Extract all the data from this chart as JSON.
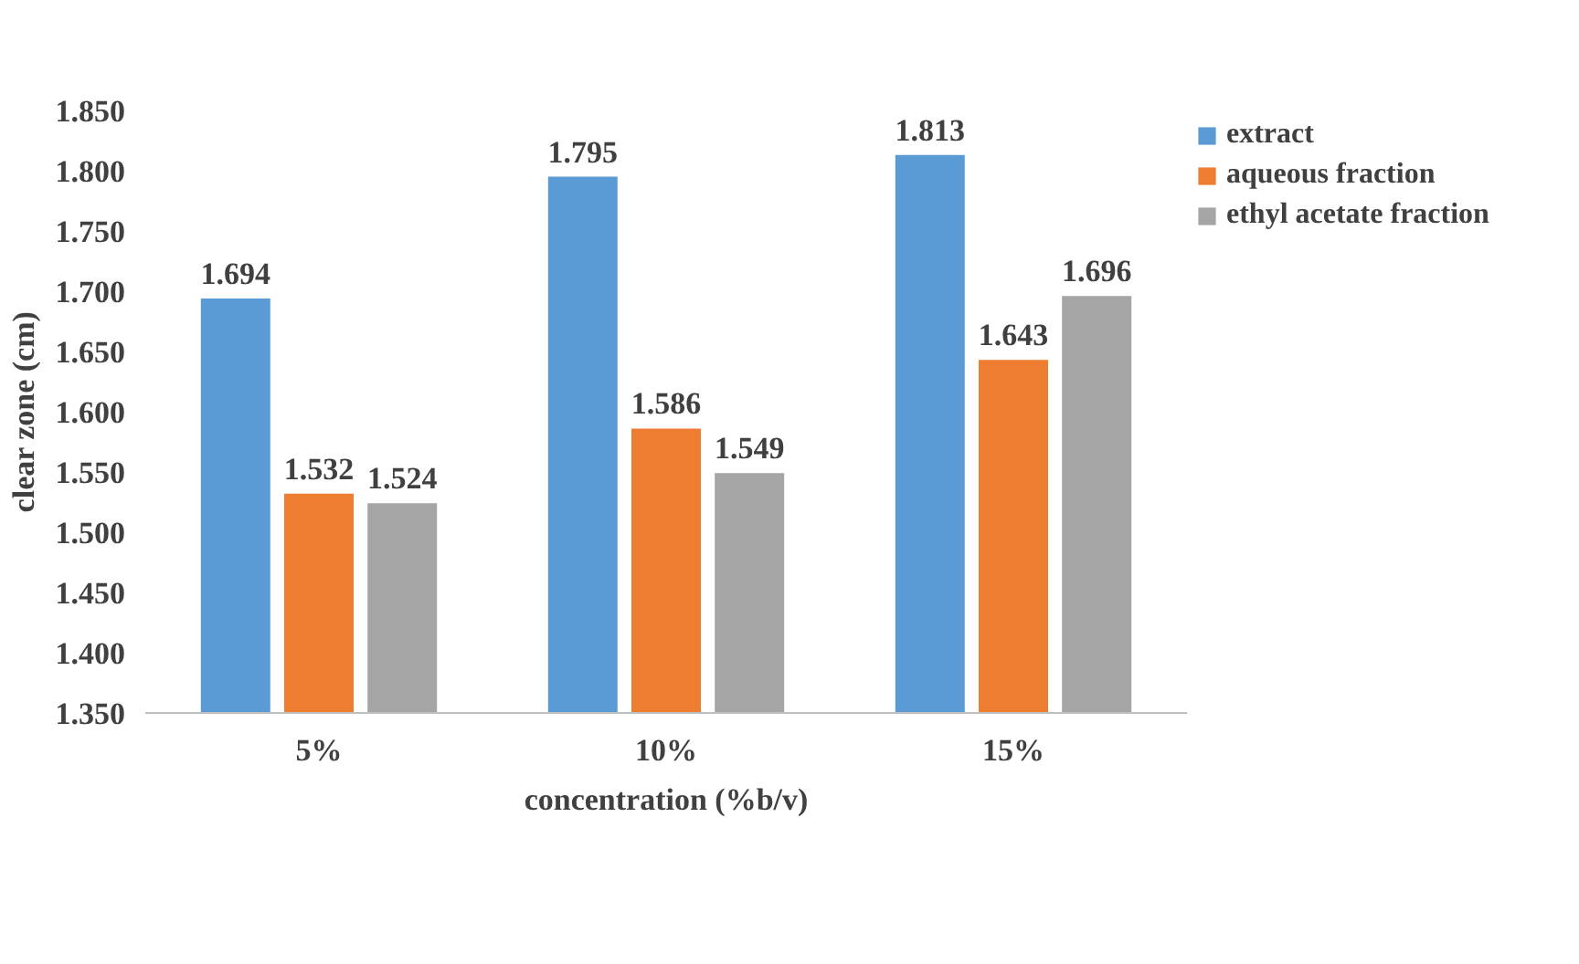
{
  "chart_data": {
    "type": "bar",
    "xlabel": "concentration (%b/v)",
    "ylabel": "clear zone (cm)",
    "categories": [
      "5%",
      "10%",
      "15%"
    ],
    "series": [
      {
        "name": "extract",
        "color": "#5b9bd5",
        "values": [
          1.694,
          1.795,
          1.813
        ]
      },
      {
        "name": "aqueous fraction",
        "color": "#ed7d31",
        "values": [
          1.532,
          1.586,
          1.643
        ]
      },
      {
        "name": "ethyl acetate fraction",
        "color": "#a5a5a5",
        "values": [
          1.524,
          1.549,
          1.696
        ]
      }
    ],
    "ylim": [
      1.35,
      1.85
    ],
    "yticks": [
      {
        "value": 1.35,
        "label": "1.350"
      },
      {
        "value": 1.4,
        "label": "1.400"
      },
      {
        "value": 1.45,
        "label": "1.450"
      },
      {
        "value": 1.5,
        "label": "1.500"
      },
      {
        "value": 1.55,
        "label": "1.550"
      },
      {
        "value": 1.6,
        "label": "1.600"
      },
      {
        "value": 1.65,
        "label": "1.650"
      },
      {
        "value": 1.7,
        "label": "1.700"
      },
      {
        "value": 1.75,
        "label": "1.750"
      },
      {
        "value": 1.8,
        "label": "1.800"
      },
      {
        "value": 1.85,
        "label": "1.850"
      }
    ],
    "grid": false,
    "legend": "top right",
    "data_labels": true
  }
}
